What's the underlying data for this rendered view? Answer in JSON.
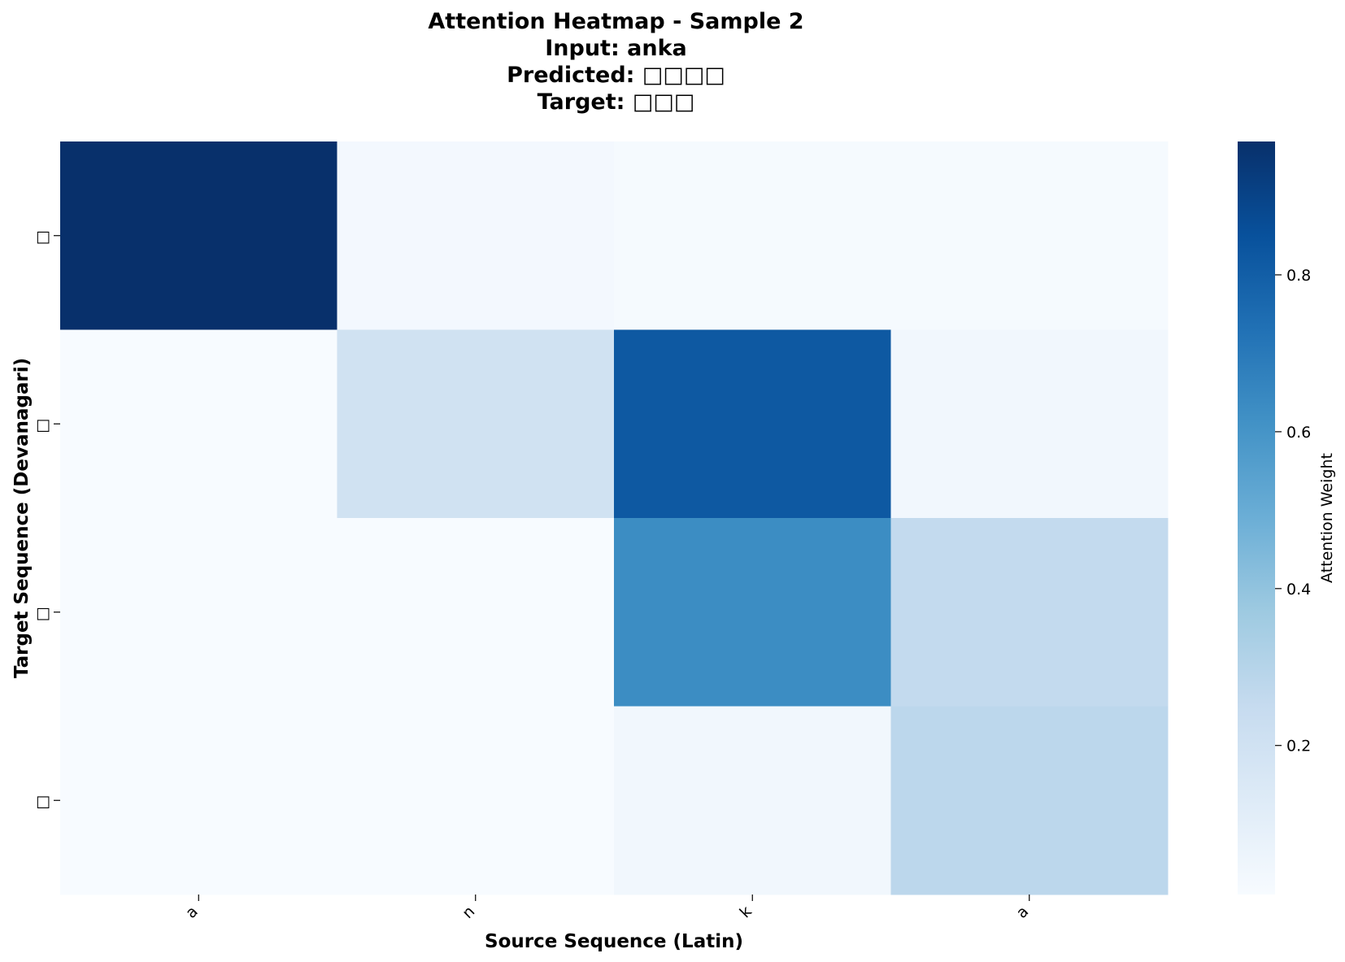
{
  "chart_data": {
    "type": "heatmap",
    "title_lines": [
      "Attention Heatmap - Sample 2",
      "Input: anka",
      "Predicted: □□□□",
      "Target: □□□"
    ],
    "xlabel": "Source Sequence (Latin)",
    "ylabel": "Target Sequence (Devanagari)",
    "x_categories": [
      "a",
      "n",
      "k",
      "a"
    ],
    "y_categories": [
      "□",
      "□",
      "□",
      "□"
    ],
    "values": [
      [
        0.97,
        0.03,
        0.02,
        0.02
      ],
      [
        0.01,
        0.2,
        0.82,
        0.04
      ],
      [
        0.01,
        0.01,
        0.63,
        0.26
      ],
      [
        0.01,
        0.01,
        0.04,
        0.28
      ]
    ],
    "colorbar": {
      "label": "Attention Weight",
      "min": 0.01,
      "max": 0.97,
      "ticks": [
        0.2,
        0.4,
        0.6,
        0.8
      ],
      "tick_labels": [
        "0.2",
        "0.4",
        "0.6",
        "0.8"
      ],
      "colormap": "Blues",
      "colormap_colors": [
        "#f7fbff",
        "#deebf7",
        "#c6dbef",
        "#9ecae1",
        "#6baed6",
        "#4292c6",
        "#2171b5",
        "#08519c",
        "#08306b"
      ]
    }
  }
}
